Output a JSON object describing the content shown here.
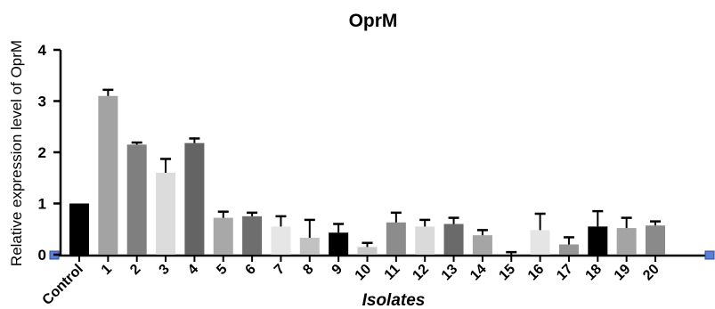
{
  "chart_data": {
    "type": "bar",
    "title": "OprM",
    "xlabel": "Isolates",
    "ylabel": "Relative expression level of OprM",
    "ylim": [
      0,
      4
    ],
    "yticks": [
      "0",
      "1",
      "2",
      "3",
      "4"
    ],
    "grid": false,
    "error_bars": true,
    "categories": [
      "Control",
      "1",
      "2",
      "3",
      "4",
      "5",
      "6",
      "7",
      "8",
      "9",
      "10",
      "11",
      "12",
      "13",
      "14",
      "15",
      "16",
      "17",
      "18",
      "19",
      "20"
    ],
    "values": [
      1.0,
      3.1,
      2.15,
      1.6,
      2.18,
      0.72,
      0.75,
      0.55,
      0.33,
      0.43,
      0.15,
      0.63,
      0.55,
      0.6,
      0.38,
      0.0,
      0.48,
      0.2,
      0.55,
      0.52,
      0.57
    ],
    "errors": [
      0.0,
      0.12,
      0.04,
      0.27,
      0.09,
      0.12,
      0.07,
      0.2,
      0.35,
      0.17,
      0.08,
      0.19,
      0.13,
      0.12,
      0.1,
      0.05,
      0.32,
      0.14,
      0.3,
      0.2,
      0.08
    ],
    "colors": [
      "#000000",
      "#a3a3a3",
      "#7f7f7f",
      "#dcdcdc",
      "#646464",
      "#a8a8a8",
      "#6e6e6e",
      "#e6e6e6",
      "#c2c2c2",
      "#000000",
      "#c8c8c8",
      "#8c8c8c",
      "#dadada",
      "#6a6a6a",
      "#a5a5a5",
      "#e0e0e0",
      "#e5e5e5",
      "#969696",
      "#000000",
      "#a4a4a4",
      "#8a8a8a"
    ]
  }
}
